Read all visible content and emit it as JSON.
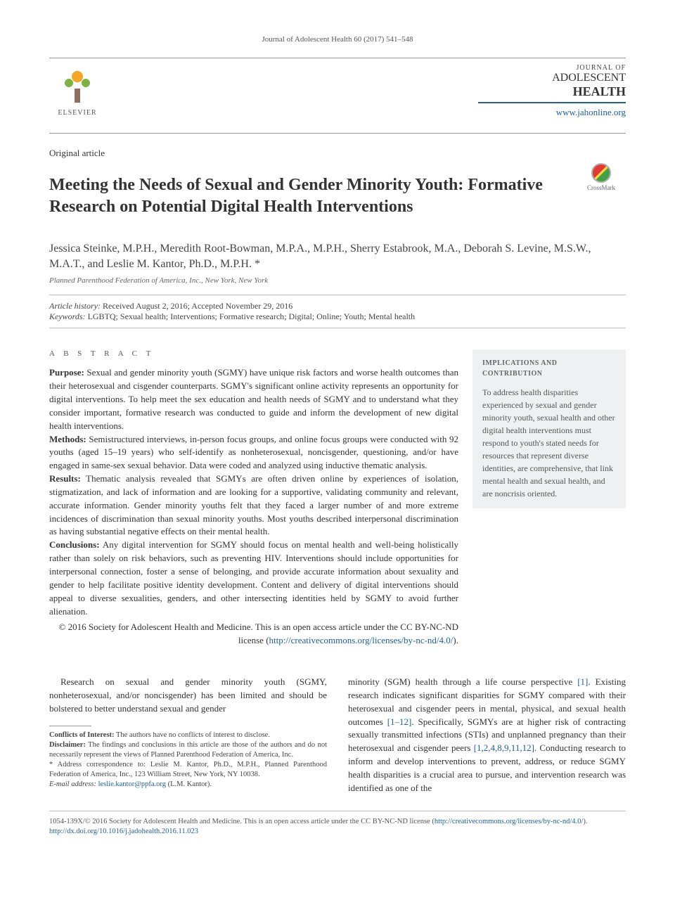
{
  "running_head": "Journal of Adolescent Health 60 (2017) 541–548",
  "publisher": {
    "name": "ELSEVIER"
  },
  "journal": {
    "label": "JOURNAL OF",
    "name_top": "ADOLESCENT",
    "name_bottom": "HEALTH",
    "url": "www.jahonline.org"
  },
  "article_type": "Original article",
  "title": "Meeting the Needs of Sexual and Gender Minority Youth: Formative Research on Potential Digital Health Interventions",
  "crossmark_label": "CrossMark",
  "authors": "Jessica Steinke, M.P.H., Meredith Root-Bowman, M.P.A., M.P.H., Sherry Estabrook, M.A., Deborah S. Levine, M.S.W., M.A.T., and Leslie M. Kantor, Ph.D., M.P.H. *",
  "affiliation": "Planned Parenthood Federation of America, Inc., New York, New York",
  "history": {
    "label": "Article history:",
    "text": "Received August 2, 2016; Accepted November 29, 2016"
  },
  "keywords": {
    "label": "Keywords:",
    "text": "LGBTQ; Sexual health; Interventions; Formative research; Digital; Online; Youth; Mental health"
  },
  "abstract": {
    "heading": "A B S T R A C T",
    "purpose_label": "Purpose:",
    "purpose": "Sexual and gender minority youth (SGMY) have unique risk factors and worse health outcomes than their heterosexual and cisgender counterparts. SGMY's significant online activity represents an opportunity for digital interventions. To help meet the sex education and health needs of SGMY and to understand what they consider important, formative research was conducted to guide and inform the development of new digital health interventions.",
    "methods_label": "Methods:",
    "methods": "Semistructured interviews, in-person focus groups, and online focus groups were conducted with 92 youths (aged 15–19 years) who self-identify as nonheterosexual, noncisgender, questioning, and/or have engaged in same-sex sexual behavior. Data were coded and analyzed using inductive thematic analysis.",
    "results_label": "Results:",
    "results": "Thematic analysis revealed that SGMYs are often driven online by experiences of isolation, stigmatization, and lack of information and are looking for a supportive, validating community and relevant, accurate information. Gender minority youths felt that they faced a larger number of and more extreme incidences of discrimination than sexual minority youths. Most youths described interpersonal discrimination as having substantial negative effects on their mental health.",
    "conclusions_label": "Conclusions:",
    "conclusions": "Any digital intervention for SGMY should focus on mental health and well-being holistically rather than solely on risk behaviors, such as preventing HIV. Interventions should include opportunities for interpersonal connection, foster a sense of belonging, and provide accurate information about sexuality and gender to help facilitate positive identity development. Content and delivery of digital interventions should appeal to diverse sexualities, genders, and other intersecting identities held by SGMY to avoid further alienation.",
    "copyright": "© 2016 Society for Adolescent Health and Medicine. This is an open access article under the CC BY-NC-ND license (",
    "license_url": "http://creativecommons.org/licenses/by-nc-nd/4.0/",
    "copyright_close": ")."
  },
  "sidebar": {
    "heading": "IMPLICATIONS AND CONTRIBUTION",
    "text": "To address health disparities experienced by sexual and gender minority youth, sexual health and other digital health interventions must respond to youth's stated needs for resources that represent diverse identities, are comprehensive, that link mental health and sexual health, and are noncrisis oriented."
  },
  "body": {
    "col1_para": "Research on sexual and gender minority youth (SGMY, nonheterosexual, and/or noncisgender) has been limited and should be bolstered to better understand sexual and gender",
    "col2_para1a": "minority (SGM) health through a life course perspective ",
    "col2_ref1": "[1]",
    "col2_para1b": ". Existing research indicates significant disparities for SGMY compared with their heterosexual and cisgender peers in mental, physical, and sexual health outcomes ",
    "col2_ref2": "[1–12]",
    "col2_para1c": ". Specifically, SGMYs are at higher risk of contracting sexually transmitted infections (STIs) and unplanned pregnancy than their heterosexual and cisgender peers ",
    "col2_ref3": "[1,2,4,8,9,11,12]",
    "col2_para1d": ". Conducting research to inform and develop interventions to prevent, address, or reduce SGMY health disparities is a crucial area to pursue, and intervention research was identified as one of the"
  },
  "footnotes": {
    "conflicts_label": "Conflicts of Interest:",
    "conflicts": "The authors have no conflicts of interest to disclose.",
    "disclaimer_label": "Disclaimer:",
    "disclaimer": "The findings and conclusions in this article are those of the authors and do not necessarily represent the views of Planned Parenthood Federation of America, Inc.",
    "corr": "* Address correspondence to: Leslie M. Kantor, Ph.D., M.P.H., Planned Parenthood Federation of America, Inc., 123 William Street, New York, NY 10038.",
    "email_label": "E-mail address:",
    "email": "leslie.kantor@ppfa.org",
    "email_tail": "(L.M. Kantor)."
  },
  "bottom": {
    "line1a": "1054-139X/© 2016 Society for Adolescent Health and Medicine. This is an open access article under the CC BY-NC-ND license (",
    "line1_link": "http://creativecommons.org/licenses/by-nc-nd/4.0/",
    "line1b": ").",
    "doi_url": "http://dx.doi.org/10.1016/j.jadohealth.2016.11.023"
  },
  "colors": {
    "link": "#2060a0",
    "rule": "#999999",
    "sidebar_bg": "#eef0f1",
    "text": "#333333"
  }
}
